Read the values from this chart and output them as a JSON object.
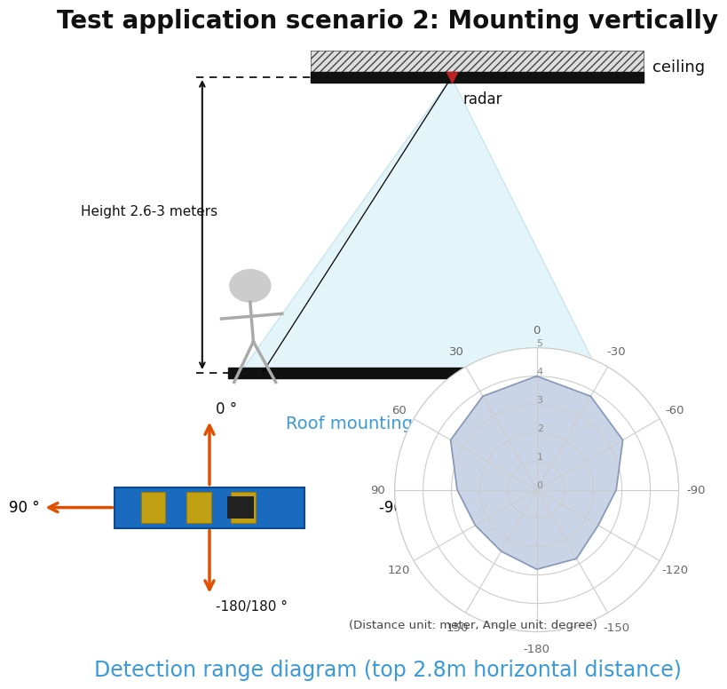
{
  "title": "Test application scenario 2: Mounting vertically",
  "title_fontsize": 20,
  "diagram_label": "Roof mounting diagram",
  "diagram_label_color": "#3a9ad9",
  "detection_label": "Detection range diagram (top 2.8m horizontal distance)",
  "detection_label_color": "#3a9ad9",
  "detection_label_fontsize": 17,
  "unit_note": "(Distance unit: meter, Angle unit: degree)",
  "height_text": "Height 2.6-3 meters",
  "ceiling_text": "ceiling",
  "radar_text": "radar",
  "background": "#ffffff",
  "r_max": 5,
  "radar_data": {
    "angles_deg": [
      0,
      30,
      60,
      90,
      120,
      150,
      180,
      210,
      240,
      270,
      300,
      330
    ],
    "values": [
      4.0,
      3.8,
      3.5,
      2.8,
      2.5,
      2.8,
      2.8,
      2.5,
      2.5,
      2.8,
      3.5,
      3.8
    ]
  },
  "radar_fill_color": "#a8b8d8",
  "radar_fill_alpha": 0.6,
  "radar_line_color": "#8898b8",
  "grid_color": "#cccccc",
  "pcb_arrows": {
    "up_text": "0 °",
    "down_text": "-180/180 °",
    "left_text": "90 °",
    "right_text": "-90 °",
    "arrow_color": "#e05000"
  },
  "cone_facecolor": "#e0f4f8",
  "cone_edgecolor": "#b8dde8",
  "floor_color": "#111111",
  "ceiling_color": "#111111",
  "hatch_facecolor": "#dddddd",
  "hatch_edgecolor": "#444444"
}
